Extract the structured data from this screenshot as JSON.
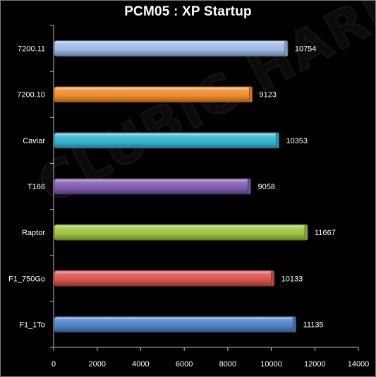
{
  "watermark": "CLUBIC HARDWARE.FR",
  "chart_data": {
    "type": "bar",
    "orientation": "horizontal",
    "title": "PCM05 : XP Startup",
    "categories": [
      "7200.11",
      "7200.10",
      "Caviar",
      "T166",
      "Raptor",
      "F1_750Go",
      "F1_1To"
    ],
    "values": [
      10754,
      9123,
      10353,
      9058,
      11667,
      10133,
      11135
    ],
    "bar_colors": [
      "#9db8e6",
      "#f08a2a",
      "#35b4cf",
      "#7d5bb0",
      "#9cc33f",
      "#d9534f",
      "#4f82c8"
    ],
    "xlim": [
      0,
      14000
    ],
    "xticks": [
      0,
      2000,
      4000,
      6000,
      8000,
      10000,
      12000,
      14000
    ],
    "xlabel": "",
    "ylabel": "",
    "grid": false,
    "legend": "none"
  }
}
